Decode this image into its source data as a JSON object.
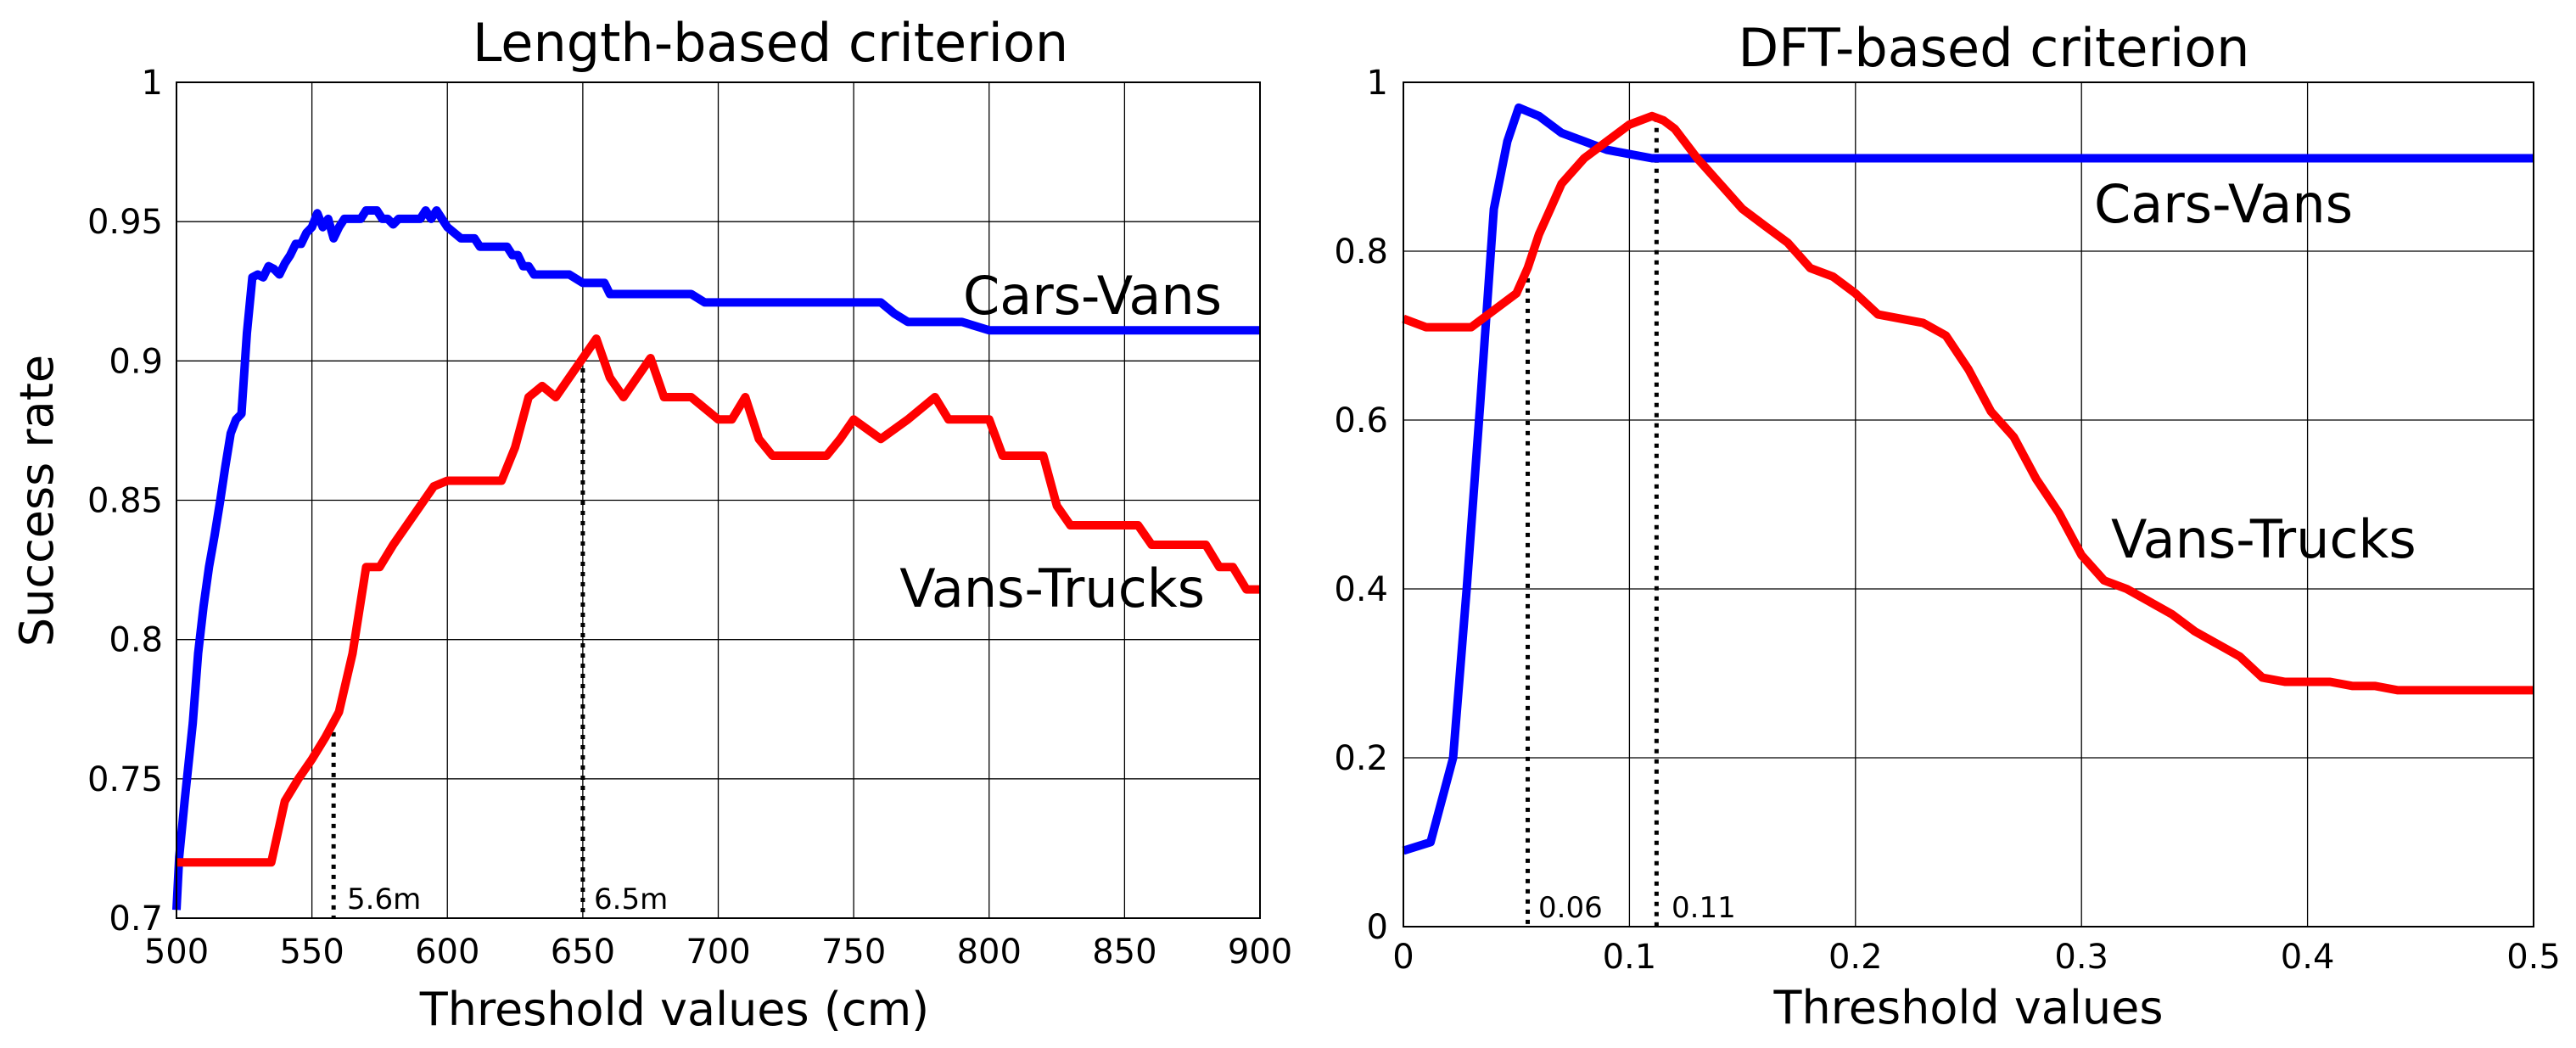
{
  "colors": {
    "blue": "#0000ff",
    "red": "#ff0000",
    "ink": "#000000",
    "background": "#ffffff"
  },
  "chart_data": [
    {
      "type": "line",
      "title": "Length-based criterion",
      "xlabel": "Threshold values (cm)",
      "ylabel": "Success rate",
      "xlim": [
        500,
        900
      ],
      "ylim": [
        0.7,
        1.0
      ],
      "grid": true,
      "xticks": [
        500,
        550,
        600,
        650,
        700,
        750,
        800,
        850,
        900
      ],
      "xtick_labels": [
        "500",
        "550",
        "600",
        "650",
        "700",
        "750",
        "800",
        "850",
        "900"
      ],
      "yticks": [
        0.7,
        0.75,
        0.8,
        0.85,
        0.9,
        0.95,
        1.0
      ],
      "ytick_labels": [
        "0.7",
        "0.75",
        "0.8",
        "0.85",
        "0.9",
        "0.95",
        "1"
      ],
      "series": [
        {
          "name": "Cars-Vans",
          "color": "#0000ff",
          "x": [
            500,
            501,
            503,
            506,
            508,
            510,
            512,
            514,
            516,
            518,
            520,
            522,
            524,
            526,
            528,
            530,
            532,
            534,
            536,
            538,
            540,
            542,
            544,
            546,
            548,
            550,
            552,
            554,
            556,
            558,
            560,
            562,
            564,
            566,
            568,
            570,
            572,
            574,
            576,
            578,
            580,
            582,
            584,
            586,
            588,
            590,
            592,
            594,
            596,
            598,
            600,
            605,
            610,
            612,
            614,
            616,
            618,
            620,
            622,
            624,
            626,
            628,
            630,
            632,
            634,
            636,
            638,
            640,
            645,
            650,
            652,
            654,
            656,
            658,
            660,
            665,
            670,
            675,
            680,
            685,
            690,
            695,
            700,
            705,
            710,
            715,
            720,
            725,
            730,
            735,
            740,
            745,
            750,
            755,
            760,
            765,
            770,
            775,
            780,
            785,
            790,
            800,
            810,
            820,
            830,
            840,
            850,
            860,
            870,
            880,
            890,
            900
          ],
          "values": [
            0.703,
            0.722,
            0.742,
            0.77,
            0.795,
            0.812,
            0.826,
            0.837,
            0.849,
            0.862,
            0.874,
            0.879,
            0.881,
            0.91,
            0.93,
            0.931,
            0.93,
            0.934,
            0.933,
            0.931,
            0.935,
            0.938,
            0.942,
            0.942,
            0.946,
            0.948,
            0.953,
            0.948,
            0.951,
            0.944,
            0.948,
            0.951,
            0.951,
            0.951,
            0.951,
            0.954,
            0.954,
            0.954,
            0.951,
            0.951,
            0.949,
            0.951,
            0.951,
            0.951,
            0.951,
            0.951,
            0.954,
            0.951,
            0.954,
            0.951,
            0.948,
            0.944,
            0.944,
            0.941,
            0.941,
            0.941,
            0.941,
            0.941,
            0.941,
            0.938,
            0.938,
            0.934,
            0.934,
            0.931,
            0.931,
            0.931,
            0.931,
            0.931,
            0.931,
            0.928,
            0.928,
            0.928,
            0.928,
            0.928,
            0.924,
            0.924,
            0.924,
            0.924,
            0.924,
            0.924,
            0.924,
            0.921,
            0.921,
            0.921,
            0.921,
            0.921,
            0.921,
            0.921,
            0.921,
            0.921,
            0.921,
            0.921,
            0.921,
            0.921,
            0.921,
            0.917,
            0.914,
            0.914,
            0.914,
            0.914,
            0.914,
            0.911,
            0.911,
            0.911,
            0.911,
            0.911,
            0.911,
            0.911,
            0.911,
            0.911,
            0.911,
            0.911
          ]
        },
        {
          "name": "Vans-Trucks",
          "color": "#ff0000",
          "x": [
            500,
            520,
            535,
            540,
            545,
            550,
            555,
            560,
            565,
            570,
            575,
            580,
            585,
            590,
            595,
            600,
            620,
            625,
            630,
            635,
            640,
            645,
            650,
            655,
            660,
            665,
            670,
            675,
            680,
            685,
            690,
            700,
            705,
            710,
            715,
            720,
            725,
            730,
            735,
            740,
            745,
            750,
            760,
            770,
            780,
            785,
            790,
            795,
            800,
            805,
            810,
            815,
            820,
            825,
            830,
            835,
            840,
            845,
            850,
            855,
            860,
            865,
            870,
            875,
            880,
            885,
            890,
            895,
            900
          ],
          "values": [
            0.72,
            0.72,
            0.72,
            0.742,
            0.75,
            0.757,
            0.765,
            0.774,
            0.795,
            0.826,
            0.826,
            0.834,
            0.841,
            0.848,
            0.855,
            0.857,
            0.857,
            0.869,
            0.887,
            0.891,
            0.887,
            0.894,
            0.901,
            0.908,
            0.894,
            0.887,
            0.894,
            0.901,
            0.887,
            0.887,
            0.887,
            0.879,
            0.879,
            0.887,
            0.872,
            0.866,
            0.866,
            0.866,
            0.866,
            0.866,
            0.872,
            0.879,
            0.872,
            0.879,
            0.887,
            0.879,
            0.879,
            0.879,
            0.879,
            0.866,
            0.866,
            0.866,
            0.866,
            0.848,
            0.841,
            0.841,
            0.841,
            0.841,
            0.841,
            0.841,
            0.834,
            0.834,
            0.834,
            0.834,
            0.834,
            0.826,
            0.826,
            0.818,
            0.818
          ]
        }
      ],
      "series_labels": [
        "Cars-Vans",
        "Vans-Trucks"
      ],
      "annotations": [
        {
          "x": 558,
          "label": "5.6m"
        },
        {
          "x": 650,
          "label": "6.5m"
        }
      ]
    },
    {
      "type": "line",
      "title": "DFT-based criterion",
      "xlabel": "Threshold values",
      "ylabel": "",
      "xlim": [
        0,
        0.5
      ],
      "ylim": [
        0,
        1.0
      ],
      "grid": true,
      "xticks": [
        0,
        0.1,
        0.2,
        0.3,
        0.4,
        0.5
      ],
      "xtick_labels": [
        "0",
        "0.1",
        "0.2",
        "0.3",
        "0.4",
        "0.5"
      ],
      "yticks": [
        0,
        0.2,
        0.4,
        0.6,
        0.8,
        1.0
      ],
      "ytick_labels": [
        "0",
        "0.2",
        "0.4",
        "0.6",
        "0.8",
        "1"
      ],
      "series": [
        {
          "name": "Cars-Vans",
          "color": "#0000ff",
          "x": [
            0,
            0.012,
            0.022,
            0.028,
            0.034,
            0.04,
            0.046,
            0.051,
            0.06,
            0.07,
            0.08,
            0.09,
            0.1,
            0.11,
            0.12,
            0.15,
            0.2,
            0.3,
            0.4,
            0.5
          ],
          "values": [
            0.09,
            0.1,
            0.2,
            0.4,
            0.62,
            0.85,
            0.93,
            0.97,
            0.96,
            0.94,
            0.93,
            0.92,
            0.915,
            0.91,
            0.91,
            0.91,
            0.91,
            0.91,
            0.91,
            0.91
          ]
        },
        {
          "name": "Vans-Trucks",
          "color": "#ff0000",
          "x": [
            0,
            0.01,
            0.02,
            0.03,
            0.04,
            0.05,
            0.055,
            0.06,
            0.065,
            0.07,
            0.08,
            0.09,
            0.1,
            0.11,
            0.115,
            0.12,
            0.13,
            0.14,
            0.15,
            0.16,
            0.17,
            0.18,
            0.19,
            0.2,
            0.21,
            0.22,
            0.23,
            0.24,
            0.25,
            0.26,
            0.27,
            0.28,
            0.29,
            0.3,
            0.31,
            0.32,
            0.33,
            0.34,
            0.35,
            0.36,
            0.37,
            0.38,
            0.39,
            0.4,
            0.41,
            0.42,
            0.43,
            0.44,
            0.45,
            0.5
          ],
          "values": [
            0.72,
            0.71,
            0.71,
            0.71,
            0.73,
            0.75,
            0.78,
            0.82,
            0.85,
            0.88,
            0.91,
            0.93,
            0.95,
            0.96,
            0.955,
            0.945,
            0.91,
            0.88,
            0.85,
            0.83,
            0.81,
            0.78,
            0.77,
            0.75,
            0.725,
            0.72,
            0.715,
            0.7,
            0.66,
            0.61,
            0.58,
            0.53,
            0.49,
            0.44,
            0.41,
            0.4,
            0.385,
            0.37,
            0.35,
            0.335,
            0.32,
            0.295,
            0.29,
            0.29,
            0.29,
            0.285,
            0.285,
            0.28,
            0.28,
            0.28
          ]
        }
      ],
      "series_labels": [
        "Cars-Vans",
        "Vans-Trucks"
      ],
      "annotations": [
        {
          "x": 0.055,
          "label": "0.06"
        },
        {
          "x": 0.112,
          "label": "0.11"
        }
      ]
    }
  ]
}
